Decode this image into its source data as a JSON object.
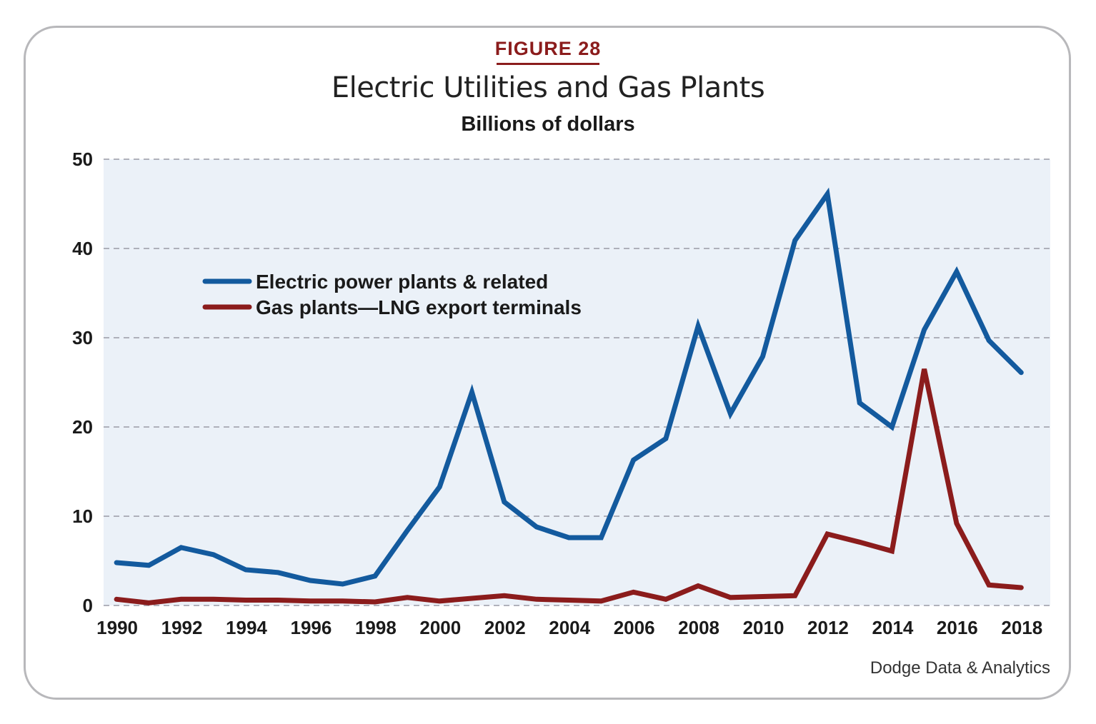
{
  "figure_label": "FIGURE 28",
  "source": "Dodge Data & Analytics",
  "chart_data": {
    "type": "line",
    "title": "Electric Utilities and Gas Plants",
    "subtitle": "Billions of dollars",
    "xlabel": "",
    "ylabel": "",
    "ylim": [
      0,
      50
    ],
    "yticks": [
      0,
      10,
      20,
      30,
      40,
      50
    ],
    "xlim": [
      1989.6,
      2018.9
    ],
    "xticks": [
      1990,
      1992,
      1994,
      1996,
      1998,
      2000,
      2002,
      2004,
      2006,
      2008,
      2010,
      2012,
      2014,
      2016,
      2018
    ],
    "x": [
      1990,
      1991,
      1992,
      1993,
      1994,
      1995,
      1996,
      1997,
      1998,
      1999,
      2000,
      2001,
      2002,
      2003,
      2004,
      2005,
      2006,
      2007,
      2008,
      2009,
      2010,
      2011,
      2012,
      2013,
      2014,
      2015,
      2016,
      2017,
      2018
    ],
    "grid": "horizontal dashed",
    "plot_background": "#ebf1f8",
    "legend_position": "upper-left",
    "series": [
      {
        "name": "Electric power plants & related",
        "color": "#135a9e",
        "values": [
          4.8,
          4.5,
          6.5,
          5.7,
          4.0,
          3.7,
          2.8,
          2.4,
          3.3,
          8.4,
          13.3,
          23.9,
          11.6,
          8.8,
          7.6,
          7.6,
          16.3,
          18.7,
          31.3,
          21.5,
          27.9,
          40.9,
          46.1,
          22.7,
          20.0,
          30.9,
          37.4,
          29.7,
          26.1
        ]
      },
      {
        "name": "Gas plants—LNG export terminals",
        "color": "#8b1c1c",
        "values": [
          0.7,
          0.3,
          0.7,
          0.7,
          0.6,
          0.6,
          0.5,
          0.5,
          0.4,
          0.9,
          0.5,
          0.8,
          1.1,
          0.7,
          0.6,
          0.5,
          1.5,
          0.7,
          2.2,
          0.9,
          1.0,
          1.1,
          8.0,
          7.1,
          6.1,
          26.5,
          9.2,
          2.3,
          2.0
        ]
      }
    ]
  }
}
